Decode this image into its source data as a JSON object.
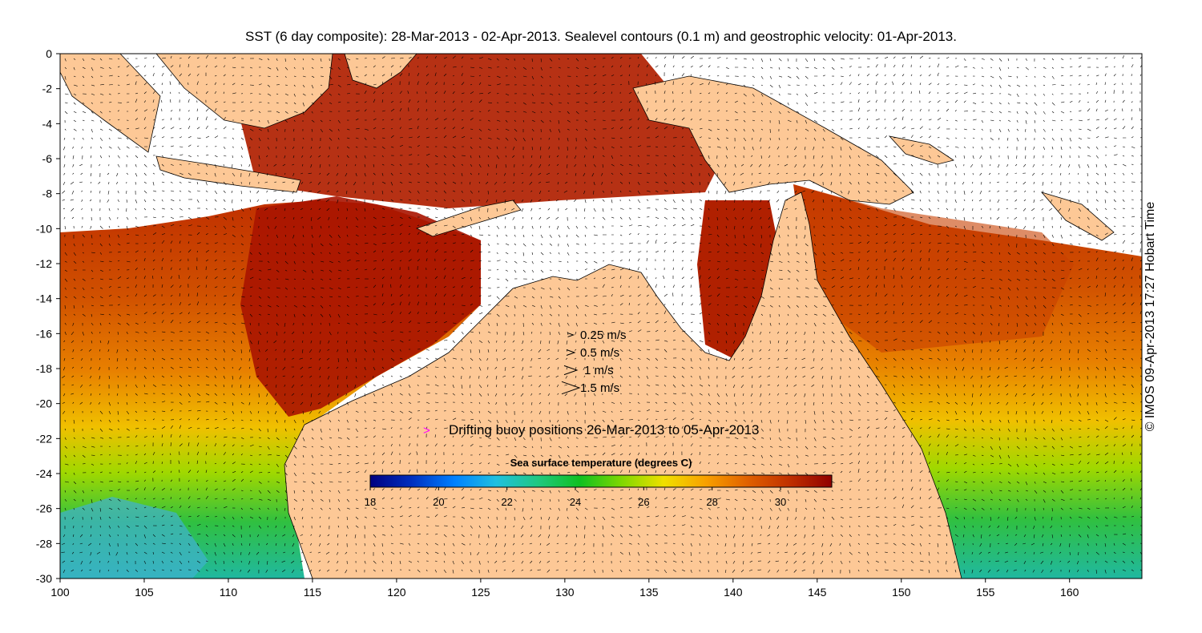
{
  "title": "SST (6 day composite): 28-Mar-2013 - 02-Apr-2013. Sealevel contours (0.1 m) and geostrophic velocity: 01-Apr-2013.",
  "axes": {
    "x_ticks": [
      "100",
      "105",
      "110",
      "115",
      "120",
      "125",
      "130",
      "135",
      "140",
      "145",
      "150",
      "155",
      "160"
    ],
    "y_ticks": [
      "0",
      "-2",
      "-4",
      "-6",
      "-8",
      "-10",
      "-12",
      "-14",
      "-16",
      "-18",
      "-20",
      "-22",
      "-24",
      "-26",
      "-28",
      "-30"
    ],
    "xlim": [
      100,
      164.3
    ],
    "ylim": [
      -30,
      0
    ]
  },
  "velocity_legend": [
    {
      "label": "0.25 m/s",
      "speed": 0.25
    },
    {
      "label": "0.5 m/s",
      "speed": 0.5
    },
    {
      "label": "1 m/s",
      "speed": 1
    },
    {
      "label": "1.5 m/s",
      "speed": 1.5
    }
  ],
  "buoy_legend": {
    "symbol": ">",
    "label": "Drifting buoy positions 26-Mar-2013 to 05-Apr-2013",
    "color": "#ff00ff"
  },
  "colorbar": {
    "title": "Sea surface temperature (degrees C)",
    "ticks": [
      "18",
      "20",
      "22",
      "24",
      "26",
      "28",
      "30"
    ],
    "range": [
      18,
      31.5
    ],
    "colors": [
      "#000080",
      "#0030c0",
      "#0080ff",
      "#20c0e0",
      "#20c880",
      "#10c020",
      "#80d800",
      "#f0e000",
      "#f8a000",
      "#e06000",
      "#c03000",
      "#900000"
    ]
  },
  "colors": {
    "land": "#fdc896",
    "no_data": "#ffffff",
    "contour": "#ffffff",
    "coast": "#000000"
  },
  "credit": "© IMOS 09-Apr-2013 17:27 Hobart Time"
}
